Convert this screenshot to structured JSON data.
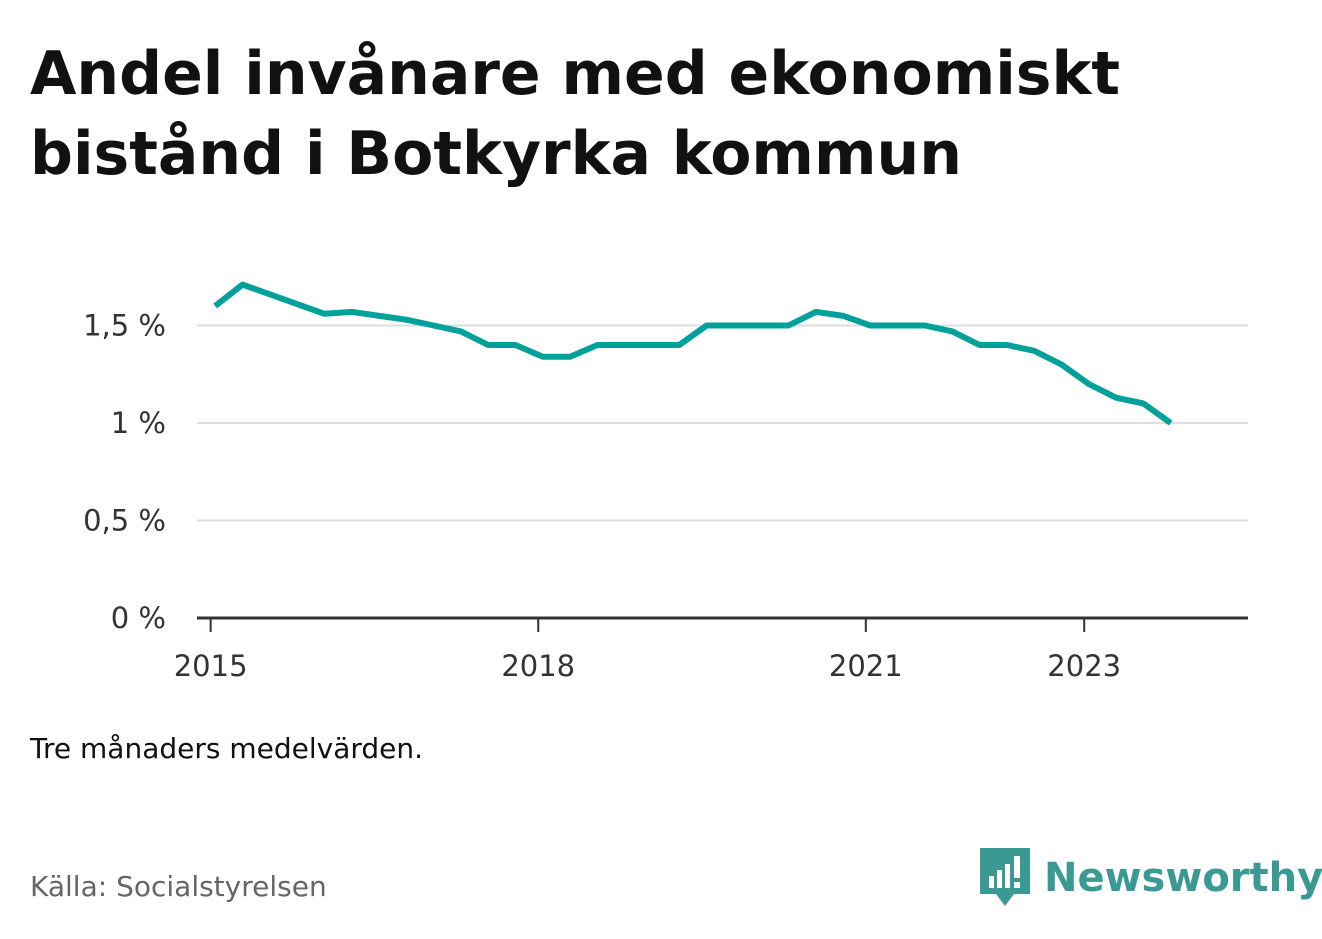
{
  "title": "Andel invånare med ekonomiskt bistånd i Botkyrka kommun",
  "note": "Tre månaders medelvärden.",
  "source": "Källa: Socialstyrelsen",
  "brand": {
    "name": "Newsworthy",
    "color": "#3a9a93",
    "icon": "newsworthy-logo-icon"
  },
  "chart_data": {
    "type": "line",
    "grid": true,
    "ylim": [
      0,
      0.02
    ],
    "xlim": [
      2014.875,
      2024.5
    ],
    "yticks": [
      0,
      0.005,
      0.01,
      0.015
    ],
    "ytick_labels": [
      "0 %",
      "0,5 %",
      "1 %",
      "1,5 %"
    ],
    "xticks": [
      2015,
      2018,
      2021,
      2023
    ],
    "xtick_labels": [
      "2015",
      "2018",
      "2021",
      "2023"
    ],
    "series": [
      {
        "color": "#00a19a",
        "x": [
          2015.042,
          2015.292,
          2015.542,
          2015.792,
          2016.042,
          2016.292,
          2016.542,
          2016.792,
          2017.042,
          2017.292,
          2017.542,
          2017.792,
          2018.042,
          2018.292,
          2018.542,
          2018.792,
          2019.042,
          2019.292,
          2019.542,
          2019.792,
          2020.042,
          2020.292,
          2020.542,
          2020.792,
          2021.042,
          2021.292,
          2021.542,
          2021.792,
          2022.042,
          2022.292,
          2022.542,
          2022.792,
          2023.042,
          2023.292,
          2023.542,
          2023.792
        ],
        "y": [
          0.016,
          0.0171,
          0.0166,
          0.0161,
          0.0156,
          0.0157,
          0.0155,
          0.0153,
          0.015,
          0.0147,
          0.014,
          0.014,
          0.0134,
          0.0134,
          0.014,
          0.014,
          0.014,
          0.014,
          0.015,
          0.015,
          0.015,
          0.015,
          0.0157,
          0.0155,
          0.015,
          0.015,
          0.015,
          0.0147,
          0.014,
          0.014,
          0.0137,
          0.013,
          0.012,
          0.0113,
          0.011,
          0.01
        ]
      }
    ]
  }
}
